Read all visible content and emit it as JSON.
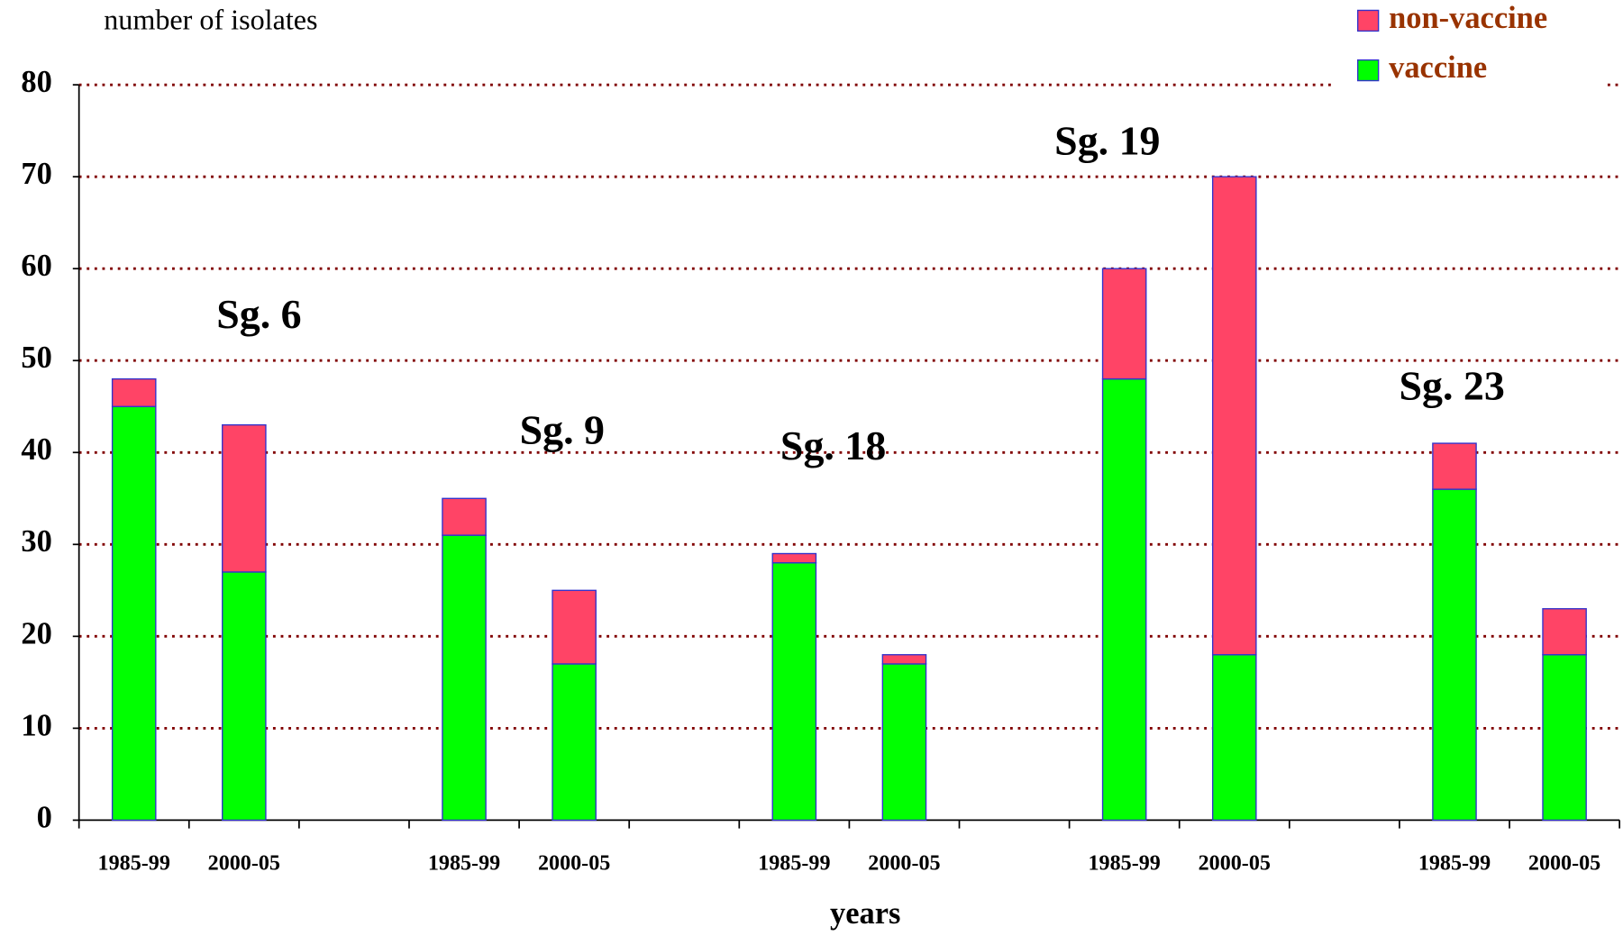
{
  "chart_data": {
    "type": "stacked-bar",
    "y_axis_label": "number of isolates",
    "x_axis_label": "years",
    "categories": [
      "1985-99",
      "2000-05",
      null,
      "1985-99",
      "2000-05",
      null,
      "1985-99",
      "2000-05",
      null,
      "1985-99",
      "2000-05",
      null,
      "1985-99",
      "2000-05"
    ],
    "series": [
      {
        "name": "vaccine",
        "color": "#00ff00",
        "values": [
          45,
          27,
          null,
          31,
          17,
          null,
          28,
          17,
          null,
          48,
          18,
          null,
          36,
          18
        ]
      },
      {
        "name": "non-vaccine",
        "color": "#ff4466",
        "values": [
          3,
          16,
          null,
          4,
          8,
          null,
          1,
          1,
          null,
          12,
          52,
          null,
          5,
          5
        ]
      }
    ],
    "annotations": [
      "Sg. 6",
      "Sg. 9",
      "Sg. 18",
      "Sg. 19",
      "Sg. 23"
    ],
    "ylim": [
      0,
      80
    ],
    "yticks": [
      0,
      10,
      20,
      30,
      40,
      50,
      60,
      70,
      80
    ],
    "grid": true,
    "legend": "top-right"
  }
}
